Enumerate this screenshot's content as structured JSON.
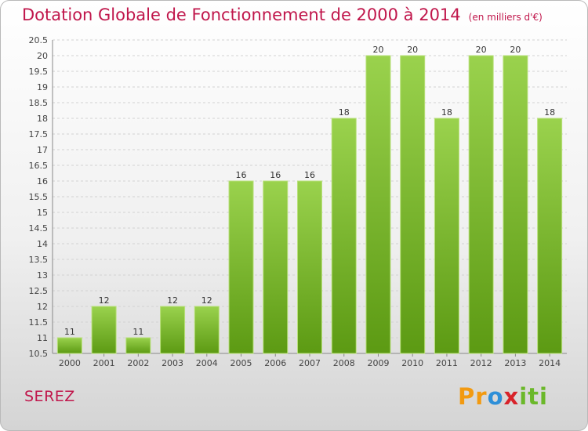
{
  "header": {
    "title": "Dotation Globale de Fonctionnement de 2000 à 2014",
    "unit": "(en milliers d'€)"
  },
  "commune": "SEREZ",
  "logo": {
    "text": "Proxiti",
    "colors": [
      "#f29a11",
      "#2e8fd8",
      "#6bb82a",
      "#d8232a"
    ]
  },
  "chart_data": {
    "type": "bar",
    "categories": [
      "2000",
      "2001",
      "2002",
      "2003",
      "2004",
      "2005",
      "2006",
      "2007",
      "2008",
      "2009",
      "2010",
      "2011",
      "2012",
      "2013",
      "2014"
    ],
    "values": [
      11,
      12,
      11,
      12,
      12,
      16,
      16,
      16,
      18,
      20,
      20,
      18,
      20,
      20,
      18
    ],
    "data_labels": [
      "11",
      "12",
      "11",
      "12",
      "12",
      "16",
      "16",
      "16",
      "18",
      "20",
      "20",
      "18",
      "20",
      "20",
      "18"
    ],
    "ylim": [
      10.5,
      20.5
    ],
    "yticks": [
      "10.5",
      "11",
      "11.5",
      "12",
      "12.5",
      "13",
      "13.5",
      "14",
      "14.5",
      "15",
      "15.5",
      "16",
      "16.5",
      "17",
      "17.5",
      "18",
      "18.5",
      "19",
      "19.5",
      "20",
      "20.5"
    ],
    "grid": true,
    "bar_color_top": "#9ad24d",
    "bar_color_bottom": "#5c9a13"
  }
}
